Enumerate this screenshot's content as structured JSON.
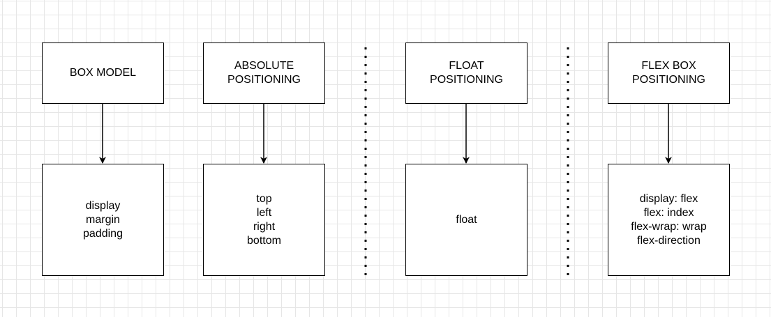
{
  "columns": [
    {
      "header": [
        "BOX MODEL"
      ],
      "items": [
        "display",
        "margin",
        "padding"
      ]
    },
    {
      "header": [
        "ABSOLUTE",
        "POSITIONING"
      ],
      "items": [
        "top",
        "left",
        "right",
        "bottom"
      ]
    },
    {
      "header": [
        "FLOAT",
        "POSITIONING"
      ],
      "items": [
        "float"
      ]
    },
    {
      "header": [
        "FLEX BOX",
        "POSITIONING"
      ],
      "items": [
        "display: flex",
        "flex: index",
        "flex-wrap: wrap",
        "flex-direction"
      ]
    }
  ],
  "colors": {
    "stroke": "#000000",
    "box_fill": "#ffffff",
    "grid": "#e6e6e6"
  }
}
